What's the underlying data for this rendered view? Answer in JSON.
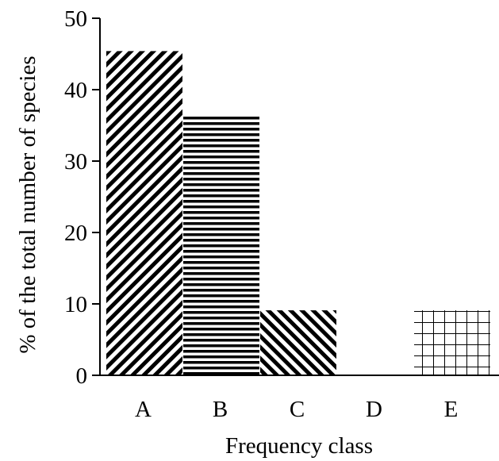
{
  "chart_data": {
    "type": "bar",
    "categories": [
      "A",
      "B",
      "C",
      "D",
      "E"
    ],
    "values": [
      45.4,
      36.4,
      9.1,
      0,
      9.1
    ],
    "patterns": [
      "diagonal-down",
      "horizontal",
      "diagonal-up",
      "none",
      "grid"
    ],
    "xlabel": "Frequency class",
    "ylabel": "% of the total number of species",
    "ylim": [
      0,
      50
    ],
    "yticks": [
      0,
      10,
      20,
      30,
      40,
      50
    ],
    "grid": false,
    "legend": "none",
    "colors": {
      "ink": "#000000",
      "background": "#ffffff"
    }
  }
}
